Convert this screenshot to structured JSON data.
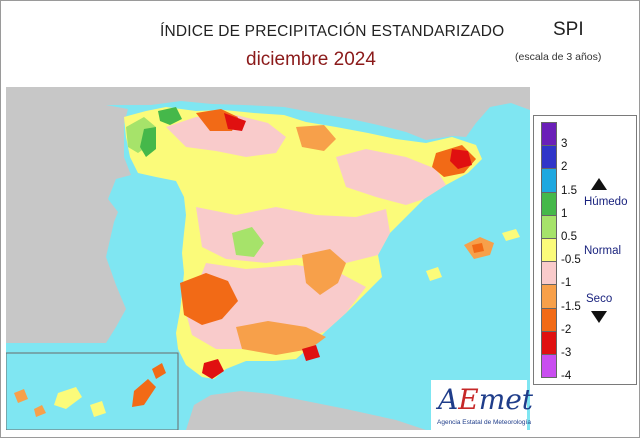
{
  "header": {
    "title": "ÍNDICE DE PRECIPITACIÓN ESTANDARIZADO",
    "period": "diciembre  2024",
    "index_name": "SPI",
    "scale_note": "(escala de 3 años)"
  },
  "legend": {
    "ticks": [
      "3",
      "2",
      "1.5",
      "1",
      "0.5",
      "-0.5",
      "-1",
      "-1.5",
      "-2",
      "-3",
      "-4"
    ],
    "categories": {
      "wet": "Húmedo",
      "normal": "Normal",
      "dry": "Seco"
    },
    "colors": [
      "#6a1fb8",
      "#2f35c9",
      "#1ea8e0",
      "#45b84a",
      "#a6e36a",
      "#fbfb7a",
      "#f9cbcb",
      "#f7a04a",
      "#f26a16",
      "#e01010",
      "#c94ef0"
    ]
  },
  "map": {
    "sea_color": "#7fe6f2",
    "land_outside_color": "#c7c7c7",
    "regions_labelled": false
  },
  "logo": {
    "mark": "AEmet",
    "caption": "Agencia Estatal de Meteorología"
  }
}
